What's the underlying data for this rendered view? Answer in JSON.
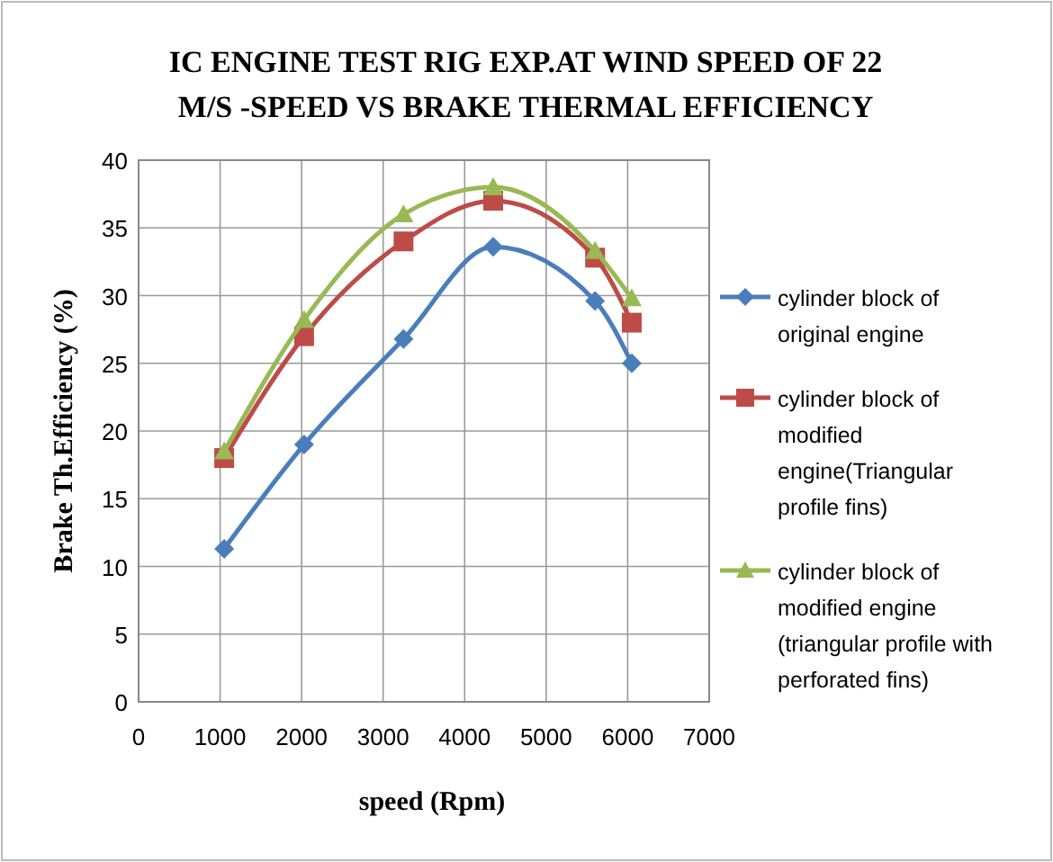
{
  "chart_data": {
    "type": "line",
    "title": "IC ENGINE TEST RIG EXP.AT WIND SPEED OF 22 M/S -SPEED VS BRAKE THERMAL EFFICIENCY",
    "xlabel": "speed (Rpm)",
    "ylabel": "Brake Th.Efficiency (%)",
    "x": [
      1050,
      2030,
      3250,
      4350,
      5600,
      6050
    ],
    "series": [
      {
        "name": "cylinder block of original engine",
        "color": "#4a7ebb",
        "marker": "diamond",
        "values": [
          11.3,
          19,
          26.8,
          33.6,
          29.6,
          25
        ]
      },
      {
        "name": "cylinder block of modified engine(Triangular profile fins)",
        "color": "#be4b48",
        "marker": "square",
        "values": [
          18,
          27,
          34,
          37,
          32.8,
          28
        ]
      },
      {
        "name": "cylinder block of modified engine (triangular profile with perforated fins)",
        "color": "#98b954",
        "marker": "triangle",
        "values": [
          18.5,
          28.2,
          36,
          38,
          33.3,
          29.8
        ]
      }
    ],
    "xlim": [
      0,
      7000
    ],
    "xticks": [
      0,
      1000,
      2000,
      3000,
      4000,
      5000,
      6000,
      7000
    ],
    "ylim": [
      0,
      40
    ],
    "yticks": [
      0,
      5,
      10,
      15,
      20,
      25,
      30,
      35,
      40
    ],
    "grid": true,
    "legend": "right"
  }
}
